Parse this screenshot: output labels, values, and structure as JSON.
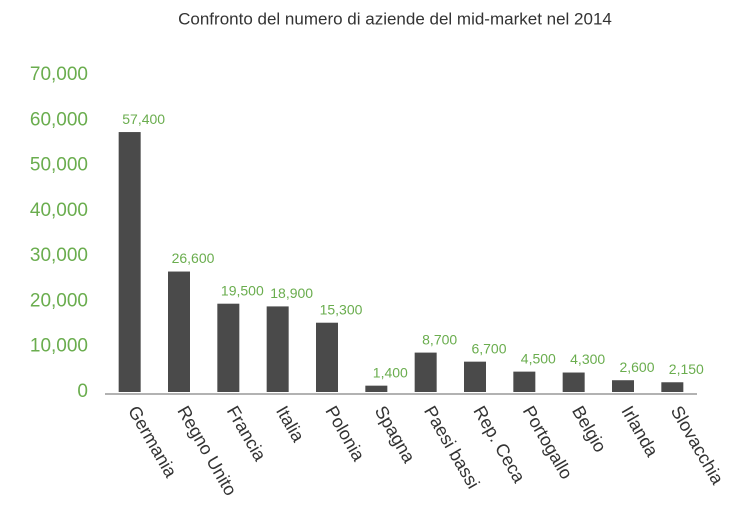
{
  "chart_data": {
    "type": "bar",
    "title": "Confronto del numero di aziende del mid-market nel 2014",
    "categories": [
      "Germania",
      "Regno Unito",
      "Francia",
      "Italia",
      "Polonia",
      "Spagna",
      "Paesi bassi",
      "Rep. Ceca",
      "Portogallo",
      "Belgio",
      "Irlanda",
      "Slovacchia"
    ],
    "values": [
      57400,
      26600,
      19500,
      18900,
      15300,
      1400,
      8700,
      6700,
      4500,
      4300,
      2600,
      2150
    ],
    "value_labels": [
      "57,400",
      "26,600",
      "19,500",
      "18,900",
      "15,300",
      "1,400",
      "8,700",
      "6,700",
      "4,500",
      "4,300",
      "2,600",
      "2,150"
    ],
    "color": "#4a4a4a",
    "ylim": [
      0,
      70000
    ],
    "yticks": [
      0,
      {
        "value": 10000,
        "label": "10,000"
      },
      {
        "value": 20000,
        "label": "20,000"
      },
      {
        "value": 30000,
        "label": "30,000"
      },
      {
        "value": 40000,
        "label": "40,000"
      },
      {
        "value": 50000,
        "label": "50,000"
      },
      {
        "value": 60000,
        "label": "60,000"
      },
      {
        "value": 70000,
        "label": "70,000"
      }
    ],
    "grid": false
  }
}
